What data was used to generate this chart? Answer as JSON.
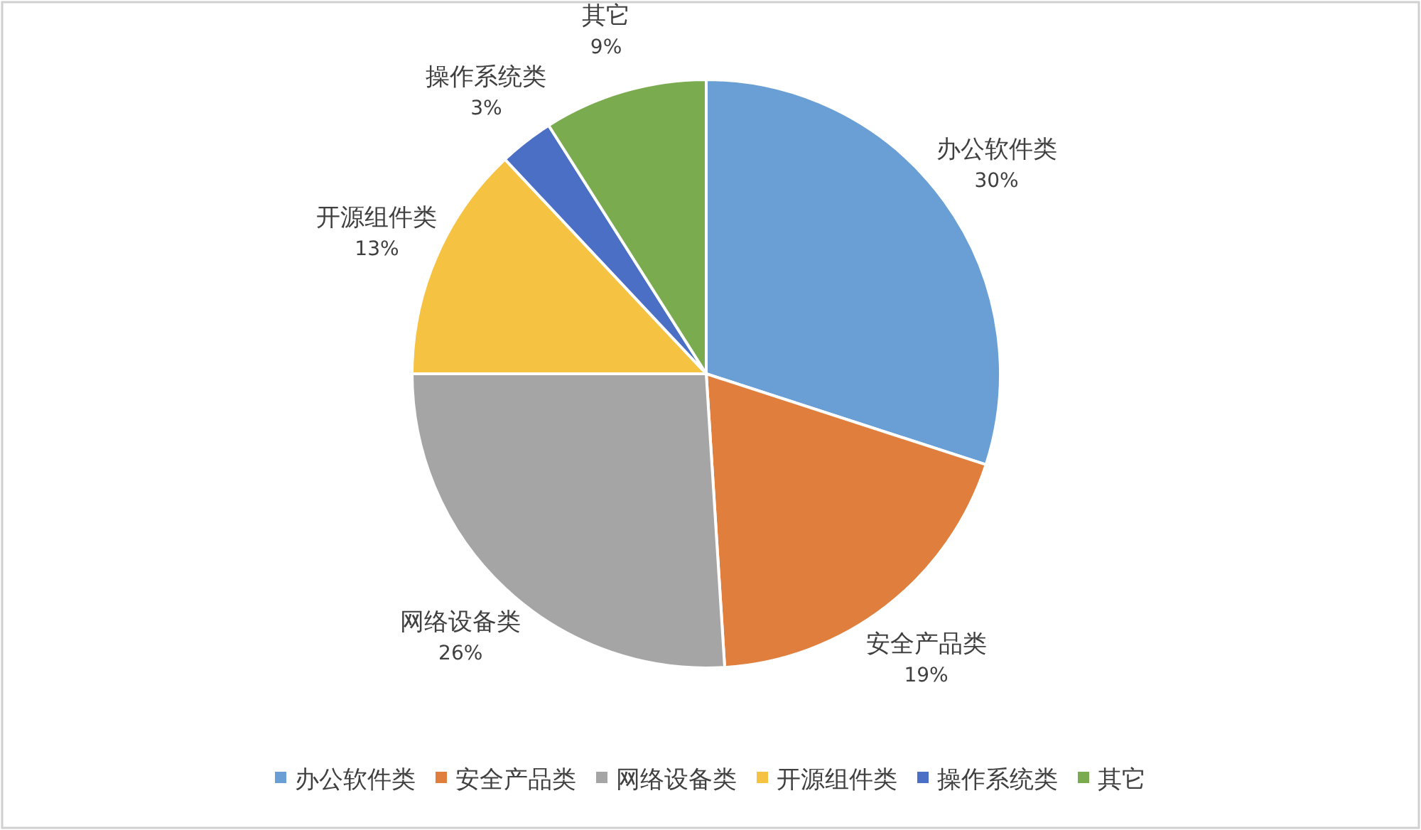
{
  "chart_data": {
    "type": "pie",
    "categories": [
      "办公软件类",
      "安全产品类",
      "网络设备类",
      "开源组件类",
      "操作系统类",
      "其它"
    ],
    "values": [
      30,
      19,
      26,
      13,
      3,
      9
    ],
    "colors": [
      "#6a9fd6",
      "#e07f3d",
      "#a5a5a5",
      "#f5c242",
      "#4a6fc5",
      "#7aab4f"
    ],
    "value_labels": [
      "30%",
      "19%",
      "26%",
      "13%",
      "3%",
      "9%"
    ],
    "legend": "bottom"
  }
}
